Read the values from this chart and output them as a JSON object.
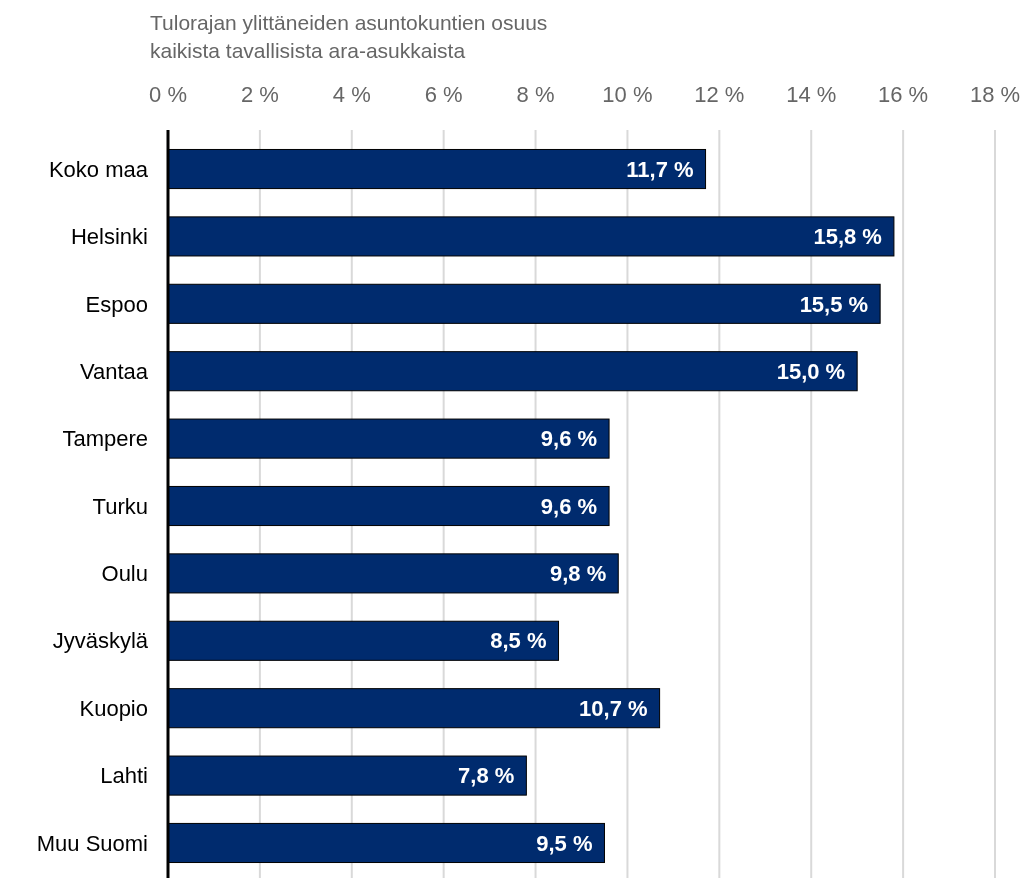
{
  "chart_data": {
    "type": "bar",
    "orientation": "horizontal",
    "xlabel": "Tulorajan ylittäneiden asuntokuntien osuus\nkaikista tavallisista ara-asukkaista",
    "categories": [
      "Koko maa",
      "Helsinki",
      "Espoo",
      "Vantaa",
      "Tampere",
      "Turku",
      "Oulu",
      "Jyväskylä",
      "Kuopio",
      "Lahti",
      "Muu Suomi"
    ],
    "values": [
      11.7,
      15.8,
      15.5,
      15.0,
      9.6,
      9.6,
      9.8,
      8.5,
      10.7,
      7.8,
      9.5
    ],
    "value_labels": [
      "11,7 %",
      "15,8 %",
      "15,5 %",
      "15,0 %",
      "9,6 %",
      "9,6 %",
      "9,8 %",
      "8,5 %",
      "10,7 %",
      "7,8 %",
      "9,5 %"
    ],
    "color": "#002b6e",
    "xlim": [
      0,
      18
    ],
    "xticks": [
      {
        "value": 0,
        "label": "0 %"
      },
      {
        "value": 2,
        "label": "2 %"
      },
      {
        "value": 4,
        "label": "4 %"
      },
      {
        "value": 6,
        "label": "6 %"
      },
      {
        "value": 8,
        "label": "8 %"
      },
      {
        "value": 10,
        "label": "10 %"
      },
      {
        "value": 12,
        "label": "12 %"
      },
      {
        "value": 14,
        "label": "14 %"
      },
      {
        "value": 16,
        "label": "16 %"
      },
      {
        "value": 18,
        "label": "18 %"
      }
    ],
    "grid": "x"
  }
}
